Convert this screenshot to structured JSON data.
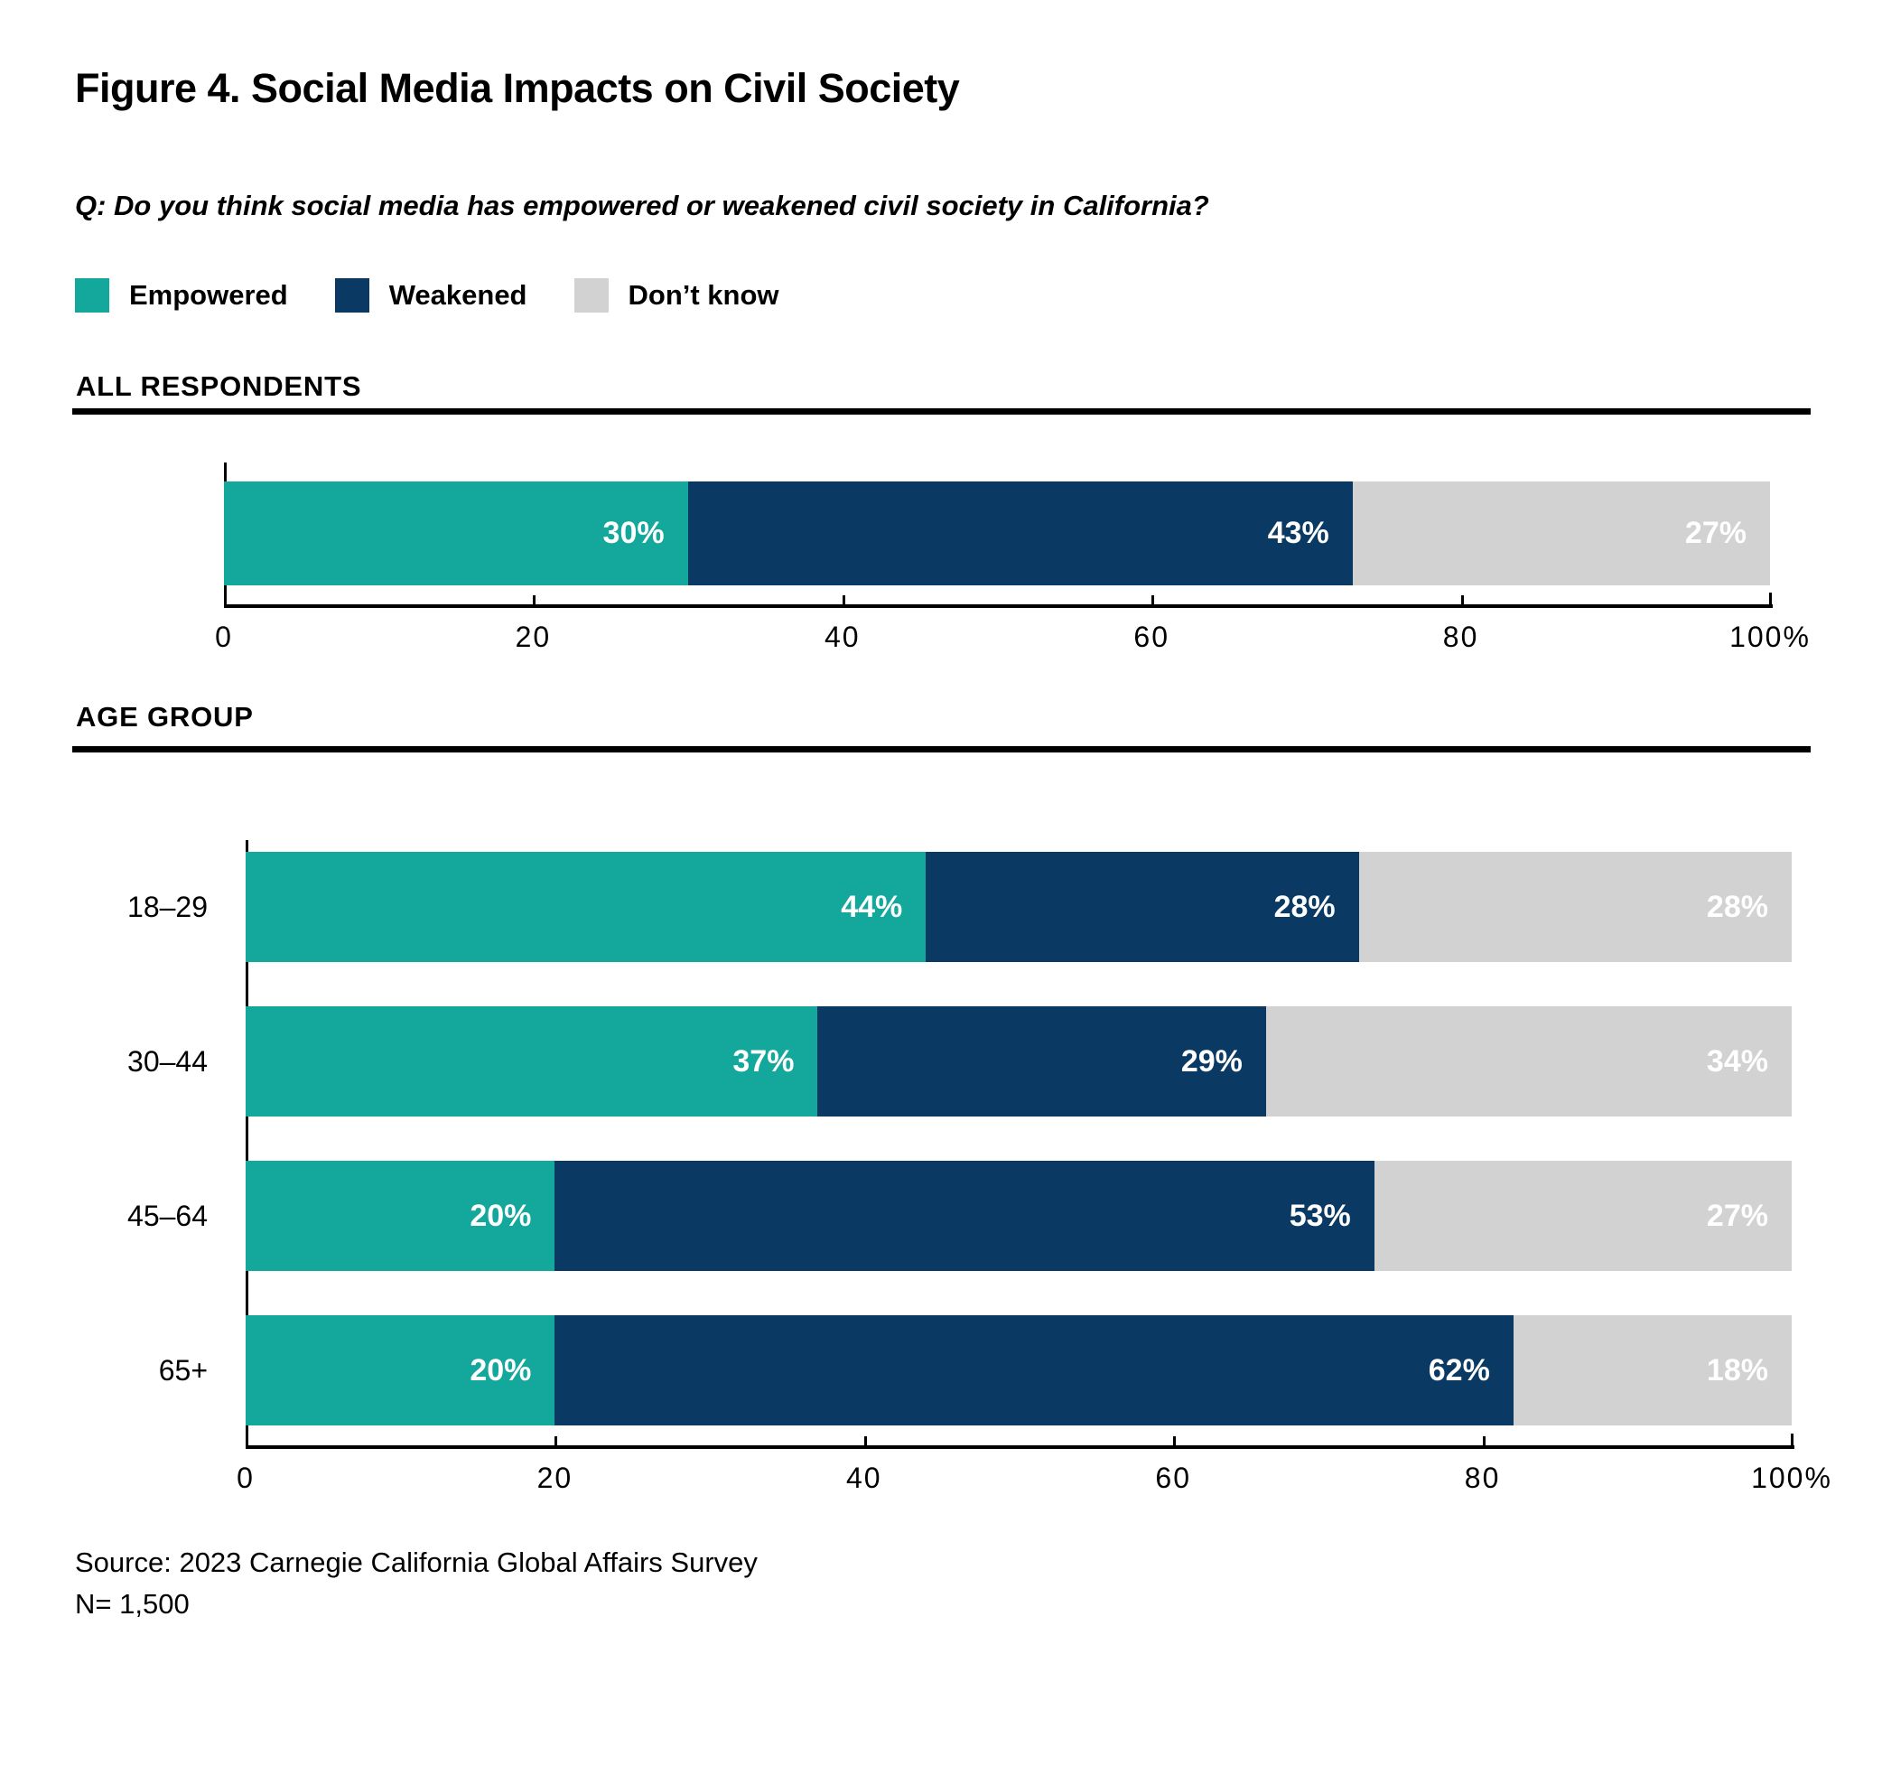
{
  "title": "Figure 4. Social Media Impacts on Civil Society",
  "question": "Q: Do you think social media has empowered or weakened civil society in California?",
  "legend": [
    {
      "label": "Empowered",
      "color": "#14A79B"
    },
    {
      "label": "Weakened",
      "color": "#0A3A63"
    },
    {
      "label": "Don’t know",
      "color": "#D2D2D3"
    }
  ],
  "colors": {
    "empowered": "#14A79B",
    "weakened": "#0A3A63",
    "dont_know": "#D2D2D3",
    "bar_value_text": "#FFFFFF",
    "text": "#000000"
  },
  "chart_data": [
    {
      "type": "bar",
      "stacked": true,
      "orientation": "horizontal",
      "section": "ALL RESPONDENTS",
      "categories": [
        "All respondents"
      ],
      "show_category_labels": false,
      "series": [
        {
          "name": "Empowered",
          "values": [
            30
          ]
        },
        {
          "name": "Weakened",
          "values": [
            43
          ]
        },
        {
          "name": "Don’t know",
          "values": [
            27
          ]
        }
      ],
      "xlim": [
        0,
        100
      ],
      "xticks": [
        "0",
        "20",
        "40",
        "60",
        "80",
        "100%"
      ],
      "value_label_suffix": "%",
      "legend_position": "top"
    },
    {
      "type": "bar",
      "stacked": true,
      "orientation": "horizontal",
      "section": "AGE GROUP",
      "categories": [
        "18–29",
        "30–44",
        "45–64",
        "65+"
      ],
      "show_category_labels": true,
      "series": [
        {
          "name": "Empowered",
          "values": [
            44,
            37,
            20,
            20
          ]
        },
        {
          "name": "Weakened",
          "values": [
            28,
            29,
            53,
            62
          ]
        },
        {
          "name": "Don’t know",
          "values": [
            28,
            34,
            27,
            18
          ]
        }
      ],
      "xlim": [
        0,
        100
      ],
      "xticks": [
        "0",
        "20",
        "40",
        "60",
        "80",
        "100%"
      ],
      "value_label_suffix": "%",
      "legend_position": "top"
    }
  ],
  "source": "Source: 2023 Carnegie California Global Affairs Survey",
  "n": "N= 1,500"
}
